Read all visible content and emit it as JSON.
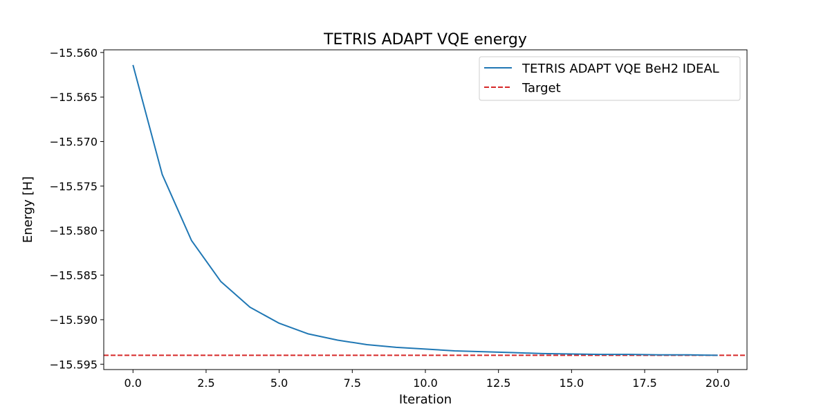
{
  "chart_data": {
    "type": "line",
    "title": "TETRIS ADAPT VQE energy",
    "xlabel": "Iteration",
    "ylabel": "Energy [H]",
    "xlim": [
      -1.0,
      21.0
    ],
    "ylim": [
      -15.5956,
      -15.5597
    ],
    "xticks": [
      0.0,
      2.5,
      5.0,
      7.5,
      10.0,
      12.5,
      15.0,
      17.5,
      20.0
    ],
    "xtick_labels": [
      "0.0",
      "2.5",
      "5.0",
      "7.5",
      "10.0",
      "12.5",
      "15.0",
      "17.5",
      "20.0"
    ],
    "yticks": [
      -15.56,
      -15.565,
      -15.57,
      -15.575,
      -15.58,
      -15.585,
      -15.59,
      -15.595
    ],
    "ytick_labels": [
      "−15.560",
      "−15.565",
      "−15.570",
      "−15.575",
      "−15.580",
      "−15.585",
      "−15.590",
      "−15.595"
    ],
    "grid": false,
    "legend_position": "top-right",
    "series": [
      {
        "name": "TETRIS ADAPT VQE BeH2 IDEAL",
        "style": "solid",
        "color": "#1f77b4",
        "x": [
          0,
          1,
          2,
          3,
          4,
          5,
          6,
          7,
          8,
          9,
          10,
          11,
          12,
          13,
          14,
          15,
          16,
          17,
          18,
          19,
          20
        ],
        "y": [
          -15.5614,
          -15.5737,
          -15.5811,
          -15.5857,
          -15.5886,
          -15.5904,
          -15.5916,
          -15.5923,
          -15.5928,
          -15.5931,
          -15.5933,
          -15.5935,
          -15.5936,
          -15.5937,
          -15.5938,
          -15.59385,
          -15.5939,
          -15.5939,
          -15.59395,
          -15.59395,
          -15.594
        ]
      },
      {
        "name": "Target",
        "style": "dashed",
        "color": "#d62728",
        "y_constant": -15.594
      }
    ]
  }
}
